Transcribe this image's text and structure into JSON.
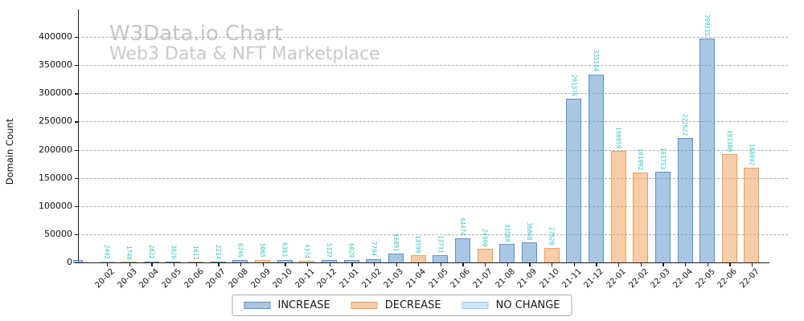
{
  "watermark": {
    "title": "W3Data.io Chart",
    "subtitle": "Web3 Data & NFT Marketplace"
  },
  "colors": {
    "increase": "#5b92cc",
    "decrease": "#f09e58",
    "no_change": "#99c9f5",
    "value_label": "#3cc4c4",
    "grid": "#b3b3b3",
    "axis": "#1a1a1a",
    "watermark_text": "#c7c7c7"
  },
  "legend": {
    "items": [
      {
        "label": "INCREASE",
        "key": "increase"
      },
      {
        "label": "DECREASE",
        "key": "decrease"
      },
      {
        "label": "NO CHANGE",
        "key": "no_change"
      }
    ]
  },
  "chart_data": {
    "type": "bar",
    "title": "W3Data.io Chart",
    "subtitle": "Web3 Data & NFT Marketplace",
    "xlabel": "",
    "ylabel": "Domain Count",
    "ylim": [
      0,
      440000
    ],
    "yticks": [
      0,
      50000,
      100000,
      150000,
      200000,
      250000,
      300000,
      350000,
      400000
    ],
    "grid": "horizontal-dashed",
    "legend_position": "bottom-center",
    "value_labels_rotated": true,
    "partial_bar_at_left_spine": {
      "category": "increase"
    },
    "points": [
      {
        "month": "20-02",
        "value": 2492,
        "change": "no_change"
      },
      {
        "month": "20-03",
        "value": 1740,
        "change": "decrease"
      },
      {
        "month": "20-04",
        "value": 2622,
        "change": "increase"
      },
      {
        "month": "20-05",
        "value": 3028,
        "change": "increase"
      },
      {
        "month": "20-06",
        "value": 1611,
        "change": "decrease"
      },
      {
        "month": "20-07",
        "value": 2214,
        "change": "increase"
      },
      {
        "month": "20-08",
        "value": 6246,
        "change": "increase"
      },
      {
        "month": "20-09",
        "value": 5065,
        "change": "decrease"
      },
      {
        "month": "20-10",
        "value": 6363,
        "change": "increase"
      },
      {
        "month": "20-11",
        "value": 4374,
        "change": "decrease"
      },
      {
        "month": "20-12",
        "value": 5137,
        "change": "increase"
      },
      {
        "month": "21-01",
        "value": 6029,
        "change": "increase"
      },
      {
        "month": "21-02",
        "value": 7794,
        "change": "increase"
      },
      {
        "month": "21-03",
        "value": 16891,
        "change": "increase"
      },
      {
        "month": "21-04",
        "value": 13599,
        "change": "decrease"
      },
      {
        "month": "21-05",
        "value": 13731,
        "change": "increase"
      },
      {
        "month": "21-06",
        "value": 44474,
        "change": "increase"
      },
      {
        "month": "21-07",
        "value": 24960,
        "change": "decrease"
      },
      {
        "month": "21-08",
        "value": 33569,
        "change": "increase"
      },
      {
        "month": "21-09",
        "value": 36868,
        "change": "increase"
      },
      {
        "month": "21-10",
        "value": 27620,
        "change": "decrease"
      },
      {
        "month": "21-11",
        "value": 291376,
        "change": "increase"
      },
      {
        "month": "21-12",
        "value": 335144,
        "change": "increase"
      },
      {
        "month": "22-01",
        "value": 198959,
        "change": "decrease"
      },
      {
        "month": "22-02",
        "value": 161092,
        "change": "decrease"
      },
      {
        "month": "22-03",
        "value": 161753,
        "change": "increase"
      },
      {
        "month": "22-04",
        "value": 222622,
        "change": "increase"
      },
      {
        "month": "22-05",
        "value": 399115,
        "change": "increase"
      },
      {
        "month": "22-06",
        "value": 193380,
        "change": "decrease"
      },
      {
        "month": "22-07",
        "value": 168892,
        "change": "decrease"
      }
    ]
  }
}
